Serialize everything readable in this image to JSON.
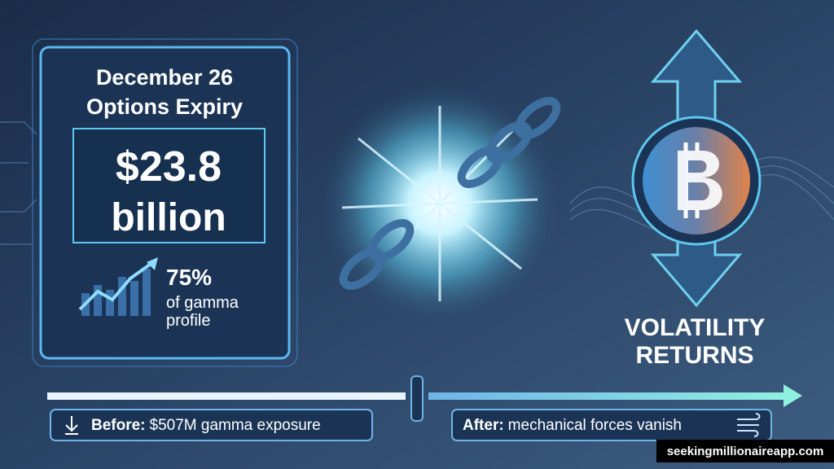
{
  "panel": {
    "title": [
      "December 26",
      "Options Expiry"
    ],
    "amount": [
      "$23.8",
      "billion"
    ],
    "stat": {
      "value": "75%",
      "label": [
        "of gamma",
        "profile"
      ]
    }
  },
  "volatility": [
    "VOLATILITY",
    "RETURNS"
  ],
  "timeline": {
    "before": {
      "label": "Before:",
      "text": "$507M gamma exposure"
    },
    "after": {
      "label": "After:",
      "text": "mechanical forces vanish"
    }
  },
  "watermark": "seekingmillionaireapp.com"
}
